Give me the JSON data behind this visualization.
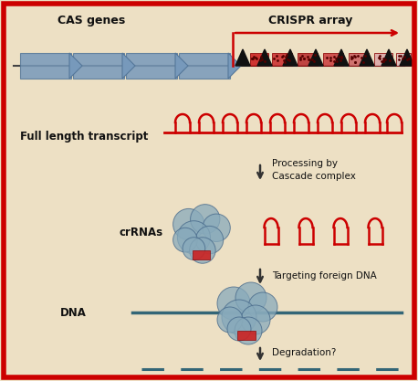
{
  "bg_color": "#ede0c4",
  "border_color": "#cc0000",
  "border_lw": 5,
  "cas_label": "CAS genes",
  "crispr_label": "CRISPR array",
  "full_transcript_label": "Full length transcript",
  "crRNAs_label": "crRNAs",
  "dna_label": "DNA",
  "processing_label": "Processing by\nCascade complex",
  "targeting_label": "Targeting foreign DNA",
  "degradation_label": "Degradation?",
  "red_arrow_color": "#cc0000",
  "dna_line_color": "#336677",
  "cas_arrow_color": "#7799bb",
  "hairpin_color": "#cc0000",
  "cascade_color": "#7799bb",
  "text_color": "#111111",
  "dna_bg": "#223344"
}
